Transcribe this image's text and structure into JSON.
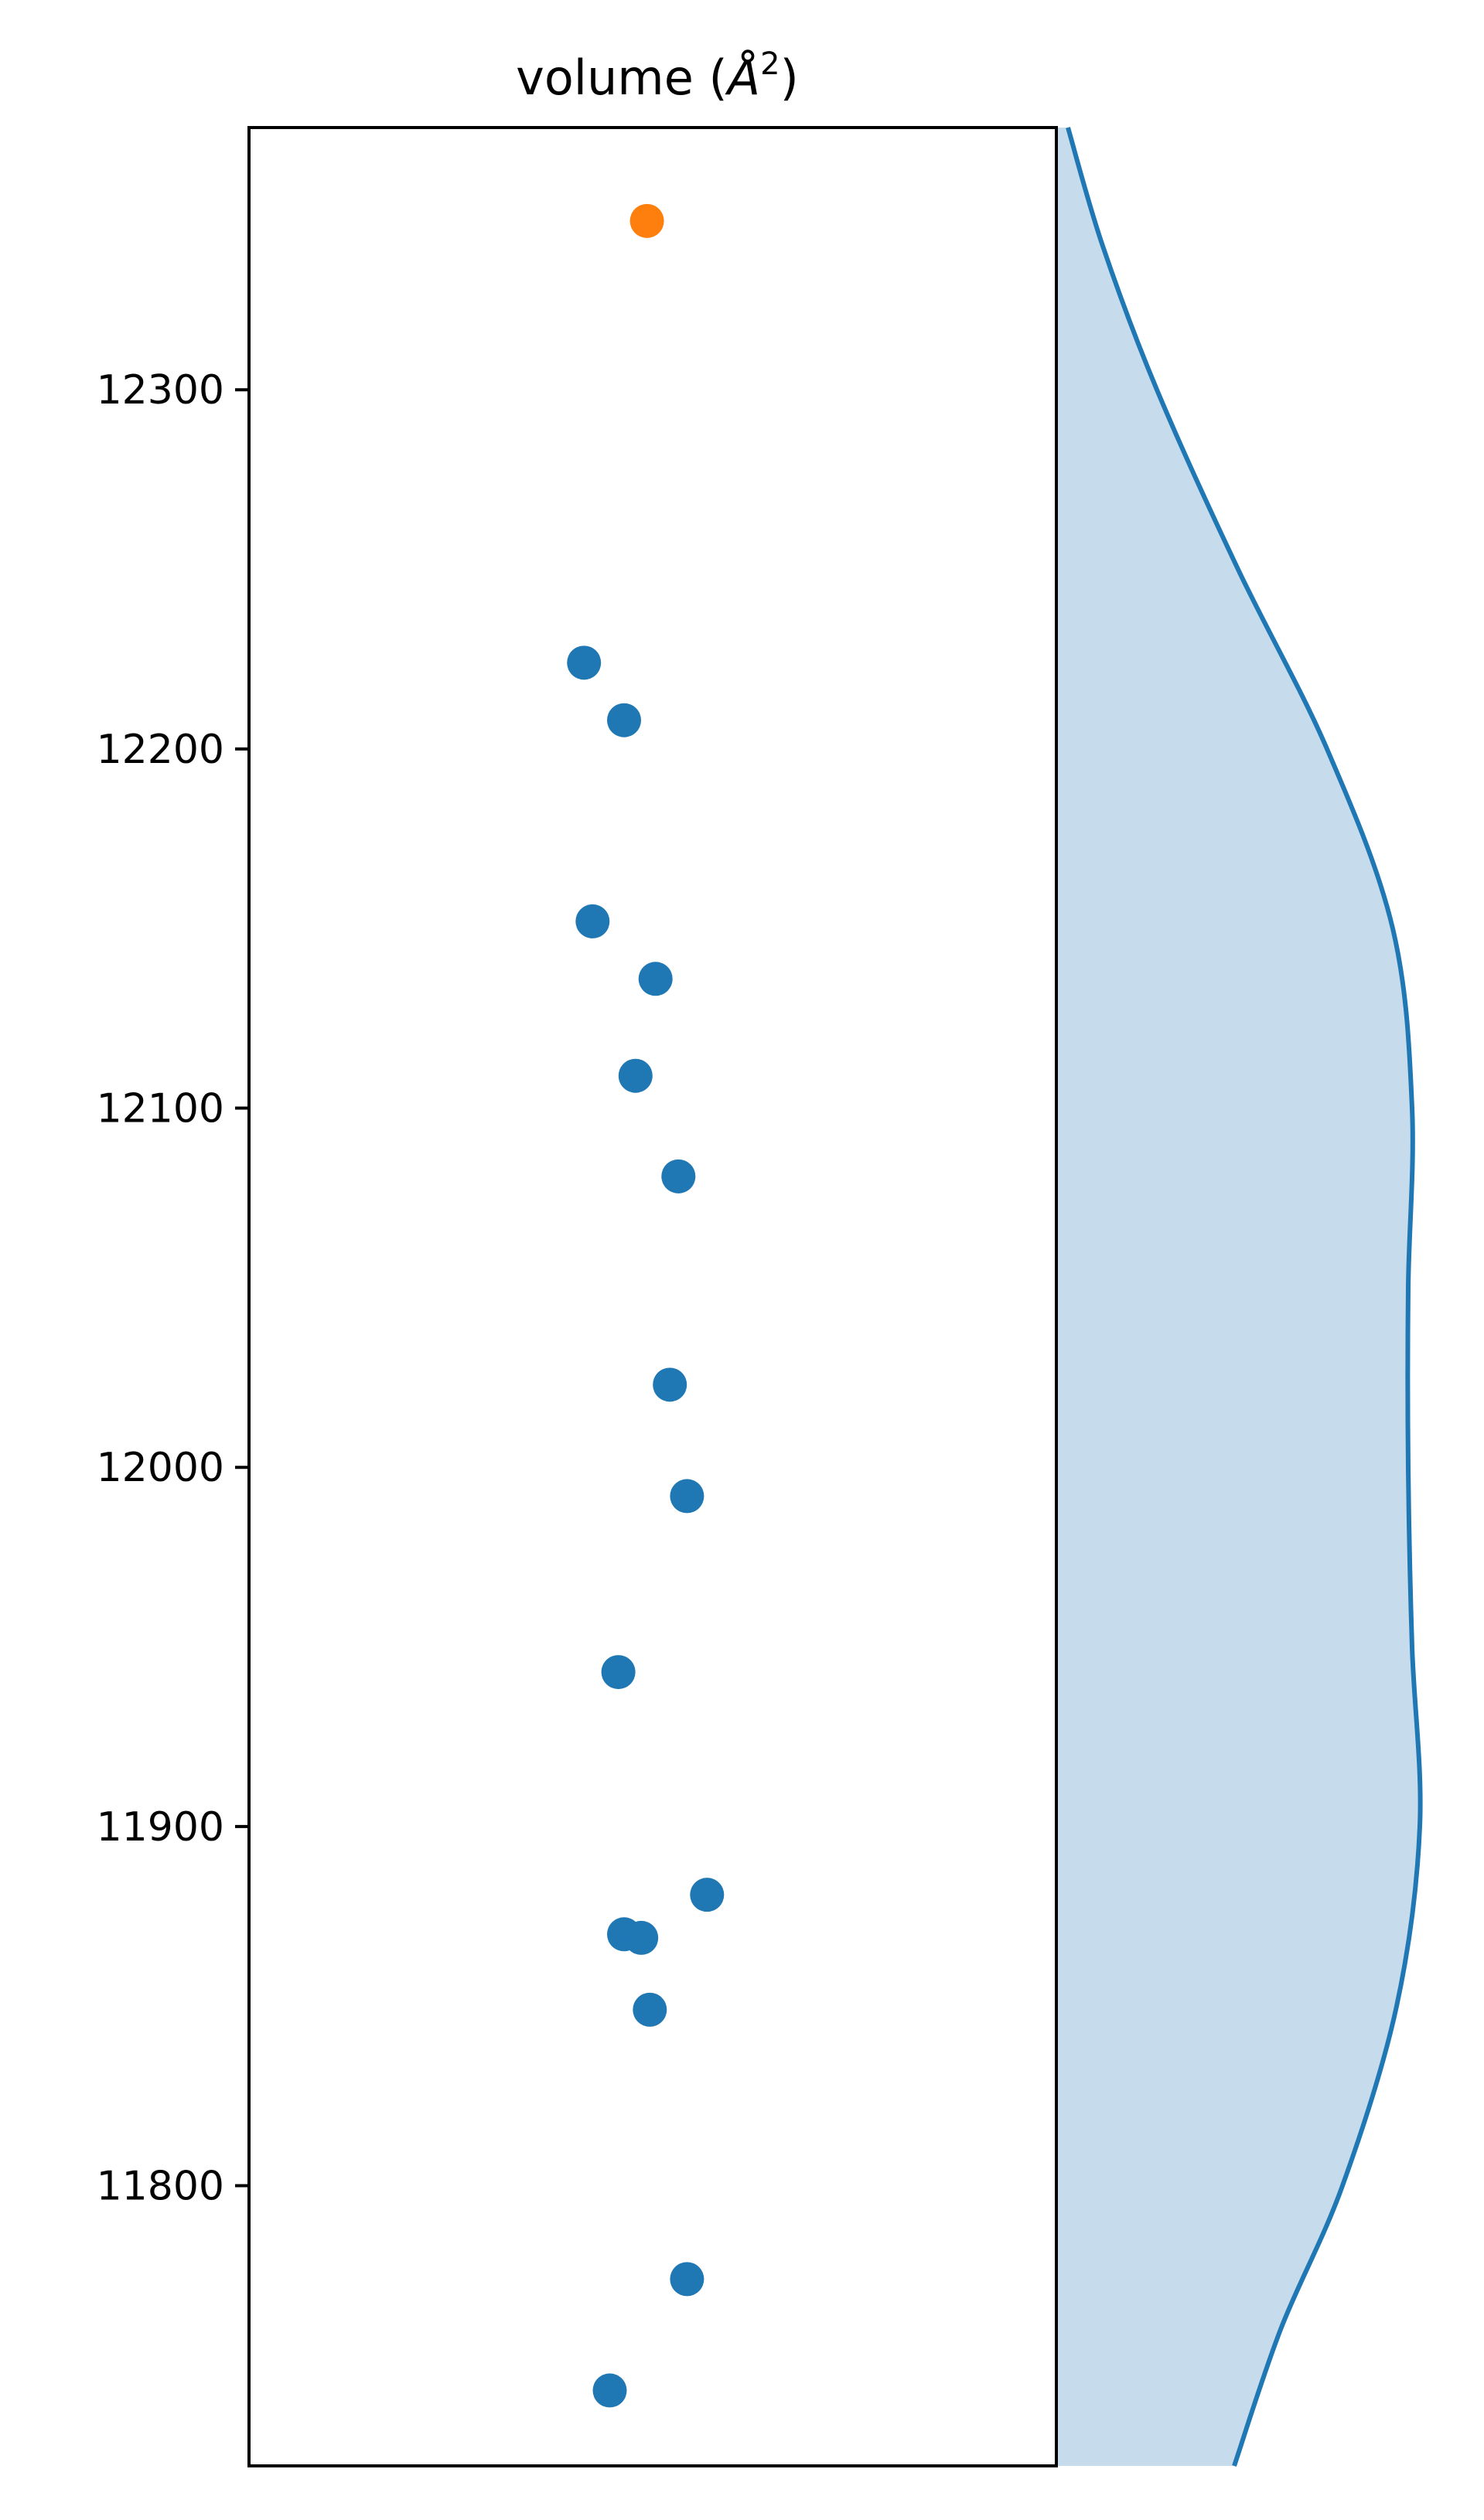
{
  "chart_data": {
    "type": "scatter",
    "title": "volume (Å²)",
    "title_parts": {
      "prefix": "volume (",
      "unit": "Å",
      "exponent": "2",
      "suffix": ")"
    },
    "xlabel": "",
    "ylabel": "",
    "ylim": [
      11722,
      12373
    ],
    "yticks": [
      11800,
      11900,
      12000,
      12100,
      12200,
      12300
    ],
    "ytick_labels": [
      "11800",
      "11900",
      "12000",
      "12100",
      "12200",
      "12300"
    ],
    "grid": false,
    "legend": "none",
    "colors": {
      "points": "#1f77b4",
      "highlight": "#ff7f0e",
      "density_fill": "#c6dbec",
      "density_line": "#1f77b4"
    },
    "points": [
      {
        "x": -0.02,
        "y": 12347,
        "highlight": true
      },
      {
        "x": -0.24,
        "y": 12224
      },
      {
        "x": -0.1,
        "y": 12208
      },
      {
        "x": -0.21,
        "y": 12152
      },
      {
        "x": 0.01,
        "y": 12136
      },
      {
        "x": -0.06,
        "y": 12109
      },
      {
        "x": 0.09,
        "y": 12081
      },
      {
        "x": 0.06,
        "y": 12023
      },
      {
        "x": 0.12,
        "y": 11992
      },
      {
        "x": -0.12,
        "y": 11943
      },
      {
        "x": 0.19,
        "y": 11881
      },
      {
        "x": -0.1,
        "y": 11870
      },
      {
        "x": -0.04,
        "y": 11869
      },
      {
        "x": -0.01,
        "y": 11849
      },
      {
        "x": 0.12,
        "y": 11774
      },
      {
        "x": -0.15,
        "y": 11743
      }
    ],
    "density": {
      "orientation": "vertical",
      "y": [
        11722,
        11760,
        11800,
        11850,
        11900,
        11950,
        12000,
        12050,
        12100,
        12150,
        12200,
        12250,
        12300,
        12340,
        12373
      ],
      "value": [
        0.46,
        0.58,
        0.74,
        0.88,
        0.94,
        0.92,
        0.91,
        0.91,
        0.92,
        0.87,
        0.7,
        0.47,
        0.26,
        0.12,
        0.03
      ]
    }
  }
}
